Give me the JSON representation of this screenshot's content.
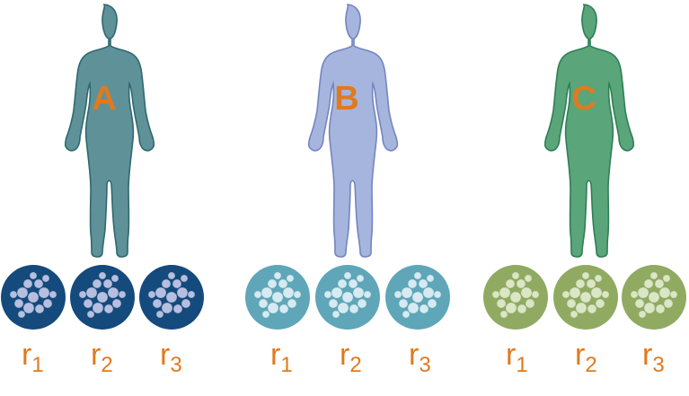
{
  "colors": {
    "label": "#e07a1f",
    "cell_fill_dark": "#b7c3e3",
    "cell_fill_light": "#dbe9f0"
  },
  "subjects": [
    {
      "label": "A",
      "body_color": "#5f9199",
      "body_stroke": "#2f6870",
      "dish_color": "#144a7c",
      "cell_color": "#b7bfe0",
      "replicates": [
        {
          "base": "r",
          "sub": "1"
        },
        {
          "base": "r",
          "sub": "2"
        },
        {
          "base": "r",
          "sub": "3"
        }
      ]
    },
    {
      "label": "B",
      "body_color": "#a6b5de",
      "body_stroke": "#7485c0",
      "dish_color": "#5ea6b8",
      "cell_color": "#d7eaf1",
      "replicates": [
        {
          "base": "r",
          "sub": "1"
        },
        {
          "base": "r",
          "sub": "2"
        },
        {
          "base": "r",
          "sub": "3"
        }
      ]
    },
    {
      "label": "C",
      "body_color": "#5aa57a",
      "body_stroke": "#2f7f55",
      "dish_color": "#90aa62",
      "cell_color": "#dbe6c6",
      "replicates": [
        {
          "base": "r",
          "sub": "1"
        },
        {
          "base": "r",
          "sub": "2"
        },
        {
          "base": "r",
          "sub": "3"
        }
      ]
    }
  ]
}
